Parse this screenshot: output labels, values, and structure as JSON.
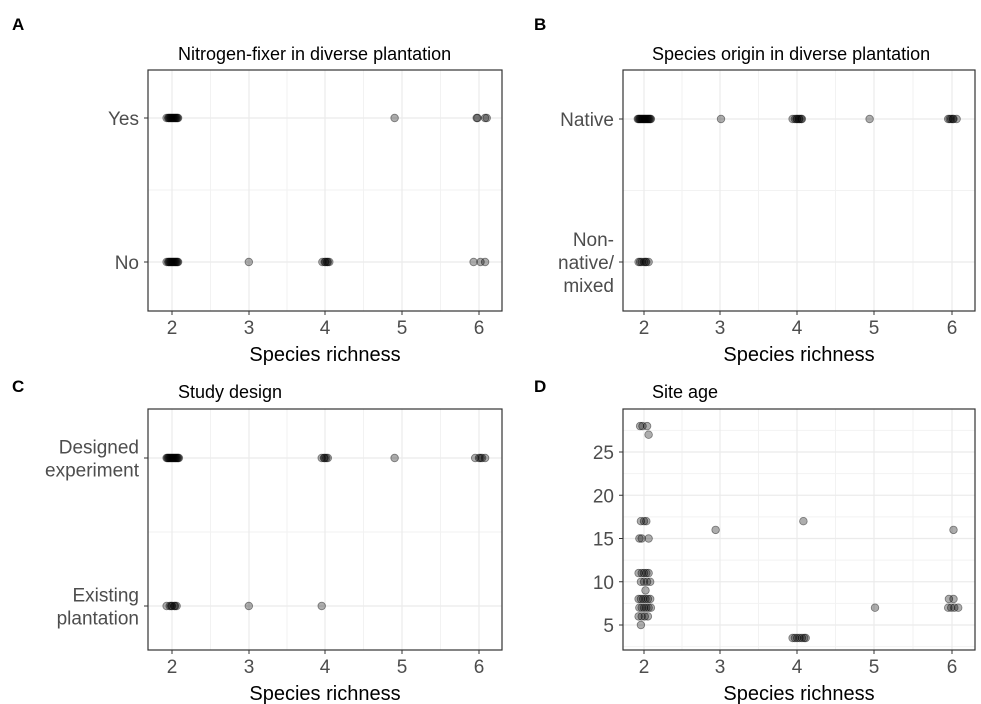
{
  "chart_data": [
    {
      "panel": "A",
      "type": "scatter",
      "title": "Nitrogen-fixer in diverse plantation",
      "xlabel": "Species richness",
      "ylabel": "",
      "x_ticks": [
        2,
        3,
        4,
        5,
        6
      ],
      "xlim": [
        1.8,
        6.3
      ],
      "y_categories": [
        "Yes",
        "No"
      ],
      "grid": true,
      "points": [
        {
          "x": 1.93,
          "y": "Yes"
        },
        {
          "x": 1.96,
          "y": "Yes"
        },
        {
          "x": 1.98,
          "y": "Yes"
        },
        {
          "x": 2.0,
          "y": "Yes"
        },
        {
          "x": 2.02,
          "y": "Yes"
        },
        {
          "x": 2.04,
          "y": "Yes"
        },
        {
          "x": 2.06,
          "y": "Yes"
        },
        {
          "x": 2.08,
          "y": "Yes"
        },
        {
          "x": 1.95,
          "y": "Yes"
        },
        {
          "x": 1.99,
          "y": "Yes"
        },
        {
          "x": 2.03,
          "y": "Yes"
        },
        {
          "x": 2.07,
          "y": "Yes"
        },
        {
          "x": 1.97,
          "y": "Yes"
        },
        {
          "x": 2.01,
          "y": "Yes"
        },
        {
          "x": 2.05,
          "y": "Yes"
        },
        {
          "x": 4.9,
          "y": "Yes"
        },
        {
          "x": 5.97,
          "y": "Yes"
        },
        {
          "x": 6.08,
          "y": "Yes"
        },
        {
          "x": 5.98,
          "y": "Yes"
        },
        {
          "x": 6.1,
          "y": "Yes"
        },
        {
          "x": 1.93,
          "y": "No"
        },
        {
          "x": 1.96,
          "y": "No"
        },
        {
          "x": 1.98,
          "y": "No"
        },
        {
          "x": 2.0,
          "y": "No"
        },
        {
          "x": 2.02,
          "y": "No"
        },
        {
          "x": 2.04,
          "y": "No"
        },
        {
          "x": 2.06,
          "y": "No"
        },
        {
          "x": 2.08,
          "y": "No"
        },
        {
          "x": 1.95,
          "y": "No"
        },
        {
          "x": 1.99,
          "y": "No"
        },
        {
          "x": 2.03,
          "y": "No"
        },
        {
          "x": 2.07,
          "y": "No"
        },
        {
          "x": 1.97,
          "y": "No"
        },
        {
          "x": 2.01,
          "y": "No"
        },
        {
          "x": 2.05,
          "y": "No"
        },
        {
          "x": 3.0,
          "y": "No"
        },
        {
          "x": 3.96,
          "y": "No"
        },
        {
          "x": 3.99,
          "y": "No"
        },
        {
          "x": 4.02,
          "y": "No"
        },
        {
          "x": 4.05,
          "y": "No"
        },
        {
          "x": 4.0,
          "y": "No"
        },
        {
          "x": 4.03,
          "y": "No"
        },
        {
          "x": 5.93,
          "y": "No"
        },
        {
          "x": 6.02,
          "y": "No"
        },
        {
          "x": 6.08,
          "y": "No"
        }
      ]
    },
    {
      "panel": "B",
      "type": "scatter",
      "title": "Species origin in diverse plantation",
      "xlabel": "Species richness",
      "ylabel": "",
      "x_ticks": [
        2,
        3,
        4,
        5,
        6
      ],
      "xlim": [
        1.8,
        6.3
      ],
      "y_categories": [
        "Native",
        "Non-\nnative/\nmixed"
      ],
      "grid": true,
      "points": [
        {
          "x": 1.93,
          "y": "Native"
        },
        {
          "x": 1.95,
          "y": "Native"
        },
        {
          "x": 1.97,
          "y": "Native"
        },
        {
          "x": 1.99,
          "y": "Native"
        },
        {
          "x": 2.01,
          "y": "Native"
        },
        {
          "x": 2.03,
          "y": "Native"
        },
        {
          "x": 2.05,
          "y": "Native"
        },
        {
          "x": 2.07,
          "y": "Native"
        },
        {
          "x": 2.09,
          "y": "Native"
        },
        {
          "x": 1.94,
          "y": "Native"
        },
        {
          "x": 1.98,
          "y": "Native"
        },
        {
          "x": 2.02,
          "y": "Native"
        },
        {
          "x": 2.06,
          "y": "Native"
        },
        {
          "x": 2.0,
          "y": "Native"
        },
        {
          "x": 1.96,
          "y": "Native"
        },
        {
          "x": 2.04,
          "y": "Native"
        },
        {
          "x": 2.08,
          "y": "Native"
        },
        {
          "x": 1.92,
          "y": "Native"
        },
        {
          "x": 3.0,
          "y": "Native"
        },
        {
          "x": 3.93,
          "y": "Native"
        },
        {
          "x": 3.96,
          "y": "Native"
        },
        {
          "x": 3.99,
          "y": "Native"
        },
        {
          "x": 4.02,
          "y": "Native"
        },
        {
          "x": 4.05,
          "y": "Native"
        },
        {
          "x": 3.98,
          "y": "Native"
        },
        {
          "x": 4.01,
          "y": "Native"
        },
        {
          "x": 4.04,
          "y": "Native"
        },
        {
          "x": 4.93,
          "y": "Native"
        },
        {
          "x": 5.95,
          "y": "Native"
        },
        {
          "x": 5.99,
          "y": "Native"
        },
        {
          "x": 6.02,
          "y": "Native"
        },
        {
          "x": 6.06,
          "y": "Native"
        },
        {
          "x": 6.01,
          "y": "Native"
        },
        {
          "x": 5.97,
          "y": "Native"
        },
        {
          "x": 1.93,
          "y": "Non-\nnative/\nmixed"
        },
        {
          "x": 1.97,
          "y": "Non-\nnative/\nmixed"
        },
        {
          "x": 2.0,
          "y": "Non-\nnative/\nmixed"
        },
        {
          "x": 2.03,
          "y": "Non-\nnative/\nmixed"
        },
        {
          "x": 2.06,
          "y": "Non-\nnative/\nmixed"
        },
        {
          "x": 1.95,
          "y": "Non-\nnative/\nmixed"
        },
        {
          "x": 2.02,
          "y": "Non-\nnative/\nmixed"
        }
      ]
    },
    {
      "panel": "C",
      "type": "scatter",
      "title": "Study design",
      "xlabel": "Species richness",
      "ylabel": "",
      "x_ticks": [
        2,
        3,
        4,
        5,
        6
      ],
      "xlim": [
        1.8,
        6.3
      ],
      "y_categories": [
        "Designed\nexperiment",
        "Existing\nplantation"
      ],
      "grid": true,
      "points": [
        {
          "x": 1.93,
          "y": "Designed\nexperiment"
        },
        {
          "x": 1.95,
          "y": "Designed\nexperiment"
        },
        {
          "x": 1.97,
          "y": "Designed\nexperiment"
        },
        {
          "x": 1.99,
          "y": "Designed\nexperiment"
        },
        {
          "x": 2.01,
          "y": "Designed\nexperiment"
        },
        {
          "x": 2.03,
          "y": "Designed\nexperiment"
        },
        {
          "x": 2.05,
          "y": "Designed\nexperiment"
        },
        {
          "x": 2.07,
          "y": "Designed\nexperiment"
        },
        {
          "x": 2.09,
          "y": "Designed\nexperiment"
        },
        {
          "x": 1.94,
          "y": "Designed\nexperiment"
        },
        {
          "x": 1.98,
          "y": "Designed\nexperiment"
        },
        {
          "x": 2.02,
          "y": "Designed\nexperiment"
        },
        {
          "x": 2.06,
          "y": "Designed\nexperiment"
        },
        {
          "x": 2.0,
          "y": "Designed\nexperiment"
        },
        {
          "x": 1.96,
          "y": "Designed\nexperiment"
        },
        {
          "x": 2.04,
          "y": "Designed\nexperiment"
        },
        {
          "x": 2.08,
          "y": "Designed\nexperiment"
        },
        {
          "x": 3.95,
          "y": "Designed\nexperiment"
        },
        {
          "x": 3.98,
          "y": "Designed\nexperiment"
        },
        {
          "x": 4.01,
          "y": "Designed\nexperiment"
        },
        {
          "x": 4.03,
          "y": "Designed\nexperiment"
        },
        {
          "x": 3.99,
          "y": "Designed\nexperiment"
        },
        {
          "x": 4.9,
          "y": "Designed\nexperiment"
        },
        {
          "x": 5.95,
          "y": "Designed\nexperiment"
        },
        {
          "x": 6.0,
          "y": "Designed\nexperiment"
        },
        {
          "x": 6.04,
          "y": "Designed\nexperiment"
        },
        {
          "x": 6.08,
          "y": "Designed\nexperiment"
        },
        {
          "x": 6.02,
          "y": "Designed\nexperiment"
        },
        {
          "x": 1.93,
          "y": "Existing\nplantation"
        },
        {
          "x": 1.97,
          "y": "Existing\nplantation"
        },
        {
          "x": 2.0,
          "y": "Existing\nplantation"
        },
        {
          "x": 2.03,
          "y": "Existing\nplantation"
        },
        {
          "x": 2.06,
          "y": "Existing\nplantation"
        },
        {
          "x": 1.99,
          "y": "Existing\nplantation"
        },
        {
          "x": 2.04,
          "y": "Existing\nplantation"
        },
        {
          "x": 3.0,
          "y": "Existing\nplantation"
        },
        {
          "x": 3.95,
          "y": "Existing\nplantation"
        }
      ]
    },
    {
      "panel": "D",
      "type": "scatter",
      "title": "Site age",
      "xlabel": "Species richness",
      "ylabel": "",
      "x_ticks": [
        2,
        3,
        4,
        5,
        6
      ],
      "xlim": [
        1.8,
        6.3
      ],
      "y_ticks": [
        5,
        10,
        15,
        20,
        25
      ],
      "ylim": [
        2.5,
        29.5
      ],
      "grid": true,
      "points": [
        {
          "x": 1.95,
          "y": 28
        },
        {
          "x": 1.98,
          "y": 28
        },
        {
          "x": 2.04,
          "y": 28
        },
        {
          "x": 2.06,
          "y": 27
        },
        {
          "x": 1.96,
          "y": 17
        },
        {
          "x": 2.0,
          "y": 17
        },
        {
          "x": 2.03,
          "y": 17
        },
        {
          "x": 1.94,
          "y": 15
        },
        {
          "x": 1.97,
          "y": 15
        },
        {
          "x": 2.06,
          "y": 15
        },
        {
          "x": 1.93,
          "y": 11
        },
        {
          "x": 1.97,
          "y": 11
        },
        {
          "x": 2.0,
          "y": 11
        },
        {
          "x": 2.03,
          "y": 11
        },
        {
          "x": 2.06,
          "y": 11
        },
        {
          "x": 1.96,
          "y": 10
        },
        {
          "x": 2.0,
          "y": 10
        },
        {
          "x": 2.04,
          "y": 10
        },
        {
          "x": 2.08,
          "y": 10
        },
        {
          "x": 2.02,
          "y": 9
        },
        {
          "x": 1.93,
          "y": 8
        },
        {
          "x": 1.96,
          "y": 8
        },
        {
          "x": 1.99,
          "y": 8
        },
        {
          "x": 2.02,
          "y": 8
        },
        {
          "x": 2.05,
          "y": 8
        },
        {
          "x": 2.08,
          "y": 8
        },
        {
          "x": 1.94,
          "y": 7
        },
        {
          "x": 1.97,
          "y": 7
        },
        {
          "x": 2.0,
          "y": 7
        },
        {
          "x": 2.03,
          "y": 7
        },
        {
          "x": 2.06,
          "y": 7
        },
        {
          "x": 2.09,
          "y": 7
        },
        {
          "x": 1.93,
          "y": 6
        },
        {
          "x": 1.97,
          "y": 6
        },
        {
          "x": 2.01,
          "y": 6
        },
        {
          "x": 2.05,
          "y": 6
        },
        {
          "x": 1.96,
          "y": 5
        },
        {
          "x": 2.93,
          "y": 16
        },
        {
          "x": 4.07,
          "y": 17
        },
        {
          "x": 3.93,
          "y": 3.5
        },
        {
          "x": 3.96,
          "y": 3.5
        },
        {
          "x": 3.99,
          "y": 3.5
        },
        {
          "x": 4.02,
          "y": 3.5
        },
        {
          "x": 4.05,
          "y": 3.5
        },
        {
          "x": 4.08,
          "y": 3.5
        },
        {
          "x": 4.1,
          "y": 3.5
        },
        {
          "x": 5.0,
          "y": 7
        },
        {
          "x": 6.02,
          "y": 16
        },
        {
          "x": 5.96,
          "y": 8
        },
        {
          "x": 6.02,
          "y": 8
        },
        {
          "x": 5.95,
          "y": 7
        },
        {
          "x": 5.99,
          "y": 7
        },
        {
          "x": 6.03,
          "y": 7
        },
        {
          "x": 6.08,
          "y": 7
        }
      ]
    }
  ]
}
